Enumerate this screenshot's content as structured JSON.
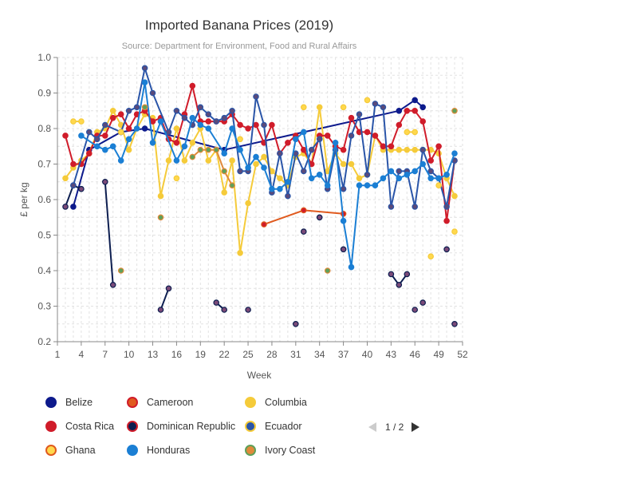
{
  "chart_data": {
    "type": "line",
    "title": "Imported Banana Prices (2019)",
    "subtitle": "Source: Department for Environment, Food and Rural Affairs",
    "xlabel": "Week",
    "ylabel": "£ per kg",
    "xlim": [
      1,
      52
    ],
    "ylim": [
      0.2,
      1.0
    ],
    "x_ticks": [
      1,
      4,
      7,
      10,
      13,
      16,
      19,
      22,
      25,
      28,
      31,
      34,
      37,
      40,
      43,
      46,
      49,
      52
    ],
    "y_ticks": [
      0.2,
      0.3,
      0.4,
      0.5,
      0.6,
      0.7,
      0.8,
      0.9,
      1.0
    ],
    "grid": true,
    "legend_position": "bottom-left",
    "series": [
      {
        "name": "Belize",
        "color": "#0d1a8c",
        "marker_fill": "#0d1a8c",
        "points": [
          [
            3,
            0.58
          ],
          [
            5,
            0.74
          ],
          [
            9,
            0.79
          ],
          [
            12,
            0.8
          ],
          [
            22,
            0.74
          ],
          [
            44,
            0.85
          ],
          [
            46,
            0.88
          ],
          [
            47,
            0.86
          ]
        ]
      },
      {
        "name": "Cameroon",
        "color": "#e05a1e",
        "marker_fill": "#d01c2a",
        "points": [
          [
            27,
            0.53
          ],
          [
            32,
            0.57
          ],
          [
            37,
            0.56
          ]
        ]
      },
      {
        "name": "Columbia",
        "color": "#f5cb3a",
        "marker_fill": "#f5cb3a",
        "points": [
          [
            2,
            0.66
          ],
          [
            3,
            0.69
          ],
          [
            4,
            0.71
          ],
          [
            5,
            0.73
          ],
          [
            6,
            0.79
          ],
          [
            7,
            0.8
          ],
          [
            8,
            0.85
          ],
          [
            9,
            0.81
          ],
          [
            10,
            0.74
          ],
          [
            11,
            0.8
          ],
          [
            12,
            0.84
          ],
          [
            13,
            0.83
          ],
          [
            14,
            0.61
          ],
          [
            15,
            0.71
          ],
          [
            16,
            0.8
          ],
          [
            17,
            0.71
          ],
          [
            18,
            0.76
          ],
          [
            19,
            0.8
          ],
          [
            20,
            0.71
          ],
          [
            21,
            0.74
          ],
          [
            22,
            0.62
          ],
          [
            23,
            0.71
          ],
          [
            24,
            0.45
          ],
          [
            25,
            0.59
          ],
          [
            26,
            0.7
          ],
          [
            27,
            0.72
          ],
          [
            28,
            0.68
          ],
          [
            29,
            0.66
          ],
          [
            30,
            0.64
          ],
          [
            31,
            0.72
          ],
          [
            32,
            0.73
          ],
          [
            33,
            0.7
          ],
          [
            34,
            0.86
          ],
          [
            35,
            0.68
          ],
          [
            36,
            0.73
          ],
          [
            37,
            0.7
          ],
          [
            38,
            0.7
          ],
          [
            39,
            0.66
          ],
          [
            40,
            0.67
          ],
          [
            41,
            0.78
          ],
          [
            42,
            0.74
          ],
          [
            43,
            0.74
          ],
          [
            44,
            0.74
          ],
          [
            45,
            0.74
          ],
          [
            46,
            0.74
          ],
          [
            47,
            0.74
          ],
          [
            48,
            0.74
          ],
          [
            49,
            0.73
          ],
          [
            50,
            0.66
          ],
          [
            51,
            0.61
          ]
        ]
      },
      {
        "name": "Costa Rica",
        "color": "#d01c2a",
        "marker_fill": "#d01c2a",
        "points": [
          [
            2,
            0.78
          ],
          [
            3,
            0.7
          ],
          [
            4,
            0.7
          ],
          [
            5,
            0.73
          ],
          [
            6,
            0.78
          ],
          [
            7,
            0.78
          ],
          [
            8,
            0.83
          ],
          [
            9,
            0.84
          ],
          [
            10,
            0.8
          ],
          [
            11,
            0.84
          ],
          [
            12,
            0.85
          ],
          [
            13,
            0.82
          ],
          [
            14,
            0.83
          ],
          [
            15,
            0.77
          ],
          [
            16,
            0.76
          ],
          [
            17,
            0.84
          ],
          [
            18,
            0.92
          ],
          [
            19,
            0.82
          ],
          [
            20,
            0.82
          ],
          [
            21,
            0.82
          ],
          [
            22,
            0.82
          ],
          [
            23,
            0.84
          ],
          [
            24,
            0.81
          ],
          [
            25,
            0.8
          ],
          [
            26,
            0.81
          ],
          [
            27,
            0.76
          ],
          [
            28,
            0.81
          ],
          [
            29,
            0.73
          ],
          [
            30,
            0.76
          ],
          [
            31,
            0.78
          ],
          [
            32,
            0.74
          ],
          [
            33,
            0.7
          ],
          [
            34,
            0.78
          ],
          [
            35,
            0.78
          ],
          [
            36,
            0.75
          ],
          [
            37,
            0.74
          ],
          [
            38,
            0.83
          ],
          [
            39,
            0.79
          ],
          [
            40,
            0.79
          ],
          [
            41,
            0.78
          ],
          [
            42,
            0.75
          ],
          [
            43,
            0.75
          ],
          [
            44,
            0.81
          ],
          [
            45,
            0.85
          ],
          [
            46,
            0.85
          ],
          [
            47,
            0.82
          ],
          [
            48,
            0.71
          ],
          [
            49,
            0.75
          ],
          [
            50,
            0.54
          ],
          [
            51,
            0.71
          ]
        ]
      },
      {
        "name": "Dominican Republic",
        "color": "#0d1e50",
        "marker_fill": "#7a4a78",
        "segments": [
          [
            [
              2,
              0.58
            ],
            [
              3,
              0.64
            ],
            [
              4,
              0.63
            ]
          ],
          [
            [
              7,
              0.65
            ],
            [
              8,
              0.36
            ]
          ],
          [
            [
              14,
              0.29
            ],
            [
              15,
              0.35
            ]
          ],
          [
            [
              21,
              0.31
            ],
            [
              22,
              0.29
            ]
          ],
          [
            [
              25,
              0.29
            ]
          ],
          [
            [
              31,
              0.25
            ]
          ],
          [
            [
              32,
              0.51
            ]
          ],
          [
            [
              34,
              0.55
            ]
          ],
          [
            [
              37,
              0.46
            ]
          ],
          [
            [
              43,
              0.39
            ],
            [
              44,
              0.36
            ],
            [
              45,
              0.39
            ]
          ],
          [
            [
              46,
              0.29
            ]
          ],
          [
            [
              47,
              0.31
            ]
          ],
          [
            [
              50,
              0.46
            ]
          ],
          [
            [
              51,
              0.25
            ]
          ]
        ]
      },
      {
        "name": "Ecuador",
        "color": "#2a55a8",
        "marker_fill": "#5a4a7a",
        "points": [
          [
            3,
            0.64
          ],
          [
            5,
            0.79
          ],
          [
            6,
            0.77
          ],
          [
            7,
            0.81
          ],
          [
            9,
            0.79
          ],
          [
            10,
            0.85
          ],
          [
            11,
            0.86
          ],
          [
            12,
            0.97
          ],
          [
            13,
            0.9
          ],
          [
            15,
            0.79
          ],
          [
            16,
            0.85
          ],
          [
            17,
            0.83
          ],
          [
            18,
            0.81
          ],
          [
            19,
            0.86
          ],
          [
            20,
            0.84
          ],
          [
            21,
            0.82
          ],
          [
            22,
            0.83
          ],
          [
            23,
            0.85
          ],
          [
            24,
            0.68
          ],
          [
            25,
            0.68
          ],
          [
            26,
            0.89
          ],
          [
            27,
            0.81
          ],
          [
            28,
            0.62
          ],
          [
            29,
            0.73
          ],
          [
            30,
            0.61
          ],
          [
            31,
            0.73
          ],
          [
            32,
            0.68
          ],
          [
            33,
            0.74
          ],
          [
            34,
            0.77
          ],
          [
            35,
            0.63
          ],
          [
            36,
            0.74
          ],
          [
            37,
            0.63
          ],
          [
            38,
            0.78
          ],
          [
            39,
            0.84
          ],
          [
            40,
            0.67
          ],
          [
            41,
            0.87
          ],
          [
            42,
            0.86
          ],
          [
            43,
            0.58
          ],
          [
            44,
            0.68
          ],
          [
            45,
            0.68
          ],
          [
            46,
            0.58
          ],
          [
            47,
            0.74
          ],
          [
            48,
            0.68
          ],
          [
            49,
            0.66
          ],
          [
            50,
            0.58
          ],
          [
            51,
            0.71
          ]
        ]
      },
      {
        "name": "Ghana",
        "color": "#f5cb3a",
        "marker_fill": "#ffd84d",
        "segments": [
          [
            [
              3,
              0.82
            ],
            [
              4,
              0.82
            ]
          ],
          [
            [
              9,
              0.79
            ]
          ],
          [
            [
              16,
              0.66
            ]
          ],
          [
            [
              24,
              0.77
            ]
          ],
          [
            [
              32,
              0.86
            ]
          ],
          [
            [
              37,
              0.86
            ]
          ],
          [
            [
              40,
              0.88
            ]
          ],
          [
            [
              45,
              0.79
            ],
            [
              46,
              0.79
            ]
          ],
          [
            [
              48,
              0.44
            ]
          ],
          [
            [
              49,
              0.64
            ]
          ],
          [
            [
              51,
              0.51
            ]
          ]
        ]
      },
      {
        "name": "Honduras",
        "color": "#1b7fd4",
        "marker_fill": "#1b7fd4",
        "points": [
          [
            4,
            0.78
          ],
          [
            6,
            0.75
          ],
          [
            7,
            0.74
          ],
          [
            8,
            0.75
          ],
          [
            9,
            0.71
          ],
          [
            10,
            0.77
          ],
          [
            11,
            0.8
          ],
          [
            12,
            0.93
          ],
          [
            13,
            0.76
          ],
          [
            14,
            0.82
          ],
          [
            16,
            0.71
          ],
          [
            17,
            0.75
          ],
          [
            18,
            0.83
          ],
          [
            19,
            0.81
          ],
          [
            20,
            0.8
          ],
          [
            22,
            0.73
          ],
          [
            23,
            0.8
          ],
          [
            24,
            0.74
          ],
          [
            25,
            0.69
          ],
          [
            26,
            0.72
          ],
          [
            27,
            0.69
          ],
          [
            28,
            0.63
          ],
          [
            29,
            0.63
          ],
          [
            30,
            0.65
          ],
          [
            31,
            0.77
          ],
          [
            32,
            0.79
          ],
          [
            33,
            0.66
          ],
          [
            34,
            0.67
          ],
          [
            35,
            0.64
          ],
          [
            36,
            0.76
          ],
          [
            37,
            0.54
          ],
          [
            38,
            0.41
          ],
          [
            39,
            0.64
          ],
          [
            40,
            0.64
          ],
          [
            41,
            0.64
          ],
          [
            42,
            0.66
          ],
          [
            43,
            0.68
          ],
          [
            44,
            0.66
          ],
          [
            45,
            0.67
          ],
          [
            46,
            0.68
          ],
          [
            47,
            0.7
          ],
          [
            48,
            0.66
          ],
          [
            49,
            0.66
          ],
          [
            50,
            0.67
          ],
          [
            51,
            0.73
          ]
        ]
      },
      {
        "name": "Ivory Coast",
        "color": "#e08a3a",
        "marker_fill": "#5fa05a",
        "segments": [
          [
            [
              9,
              0.4
            ]
          ],
          [
            [
              12,
              0.86
            ]
          ],
          [
            [
              14,
              0.55
            ]
          ],
          [
            [
              18,
              0.72
            ],
            [
              19,
              0.74
            ],
            [
              20,
              0.74
            ],
            [
              21,
              0.74
            ],
            [
              22,
              0.68
            ],
            [
              23,
              0.64
            ]
          ],
          [
            [
              35,
              0.4
            ]
          ],
          [
            [
              51,
              0.85
            ]
          ]
        ]
      }
    ]
  },
  "legend": {
    "items": [
      {
        "label": "Belize",
        "color": "#0d1a8c",
        "border": "#0d1a8c"
      },
      {
        "label": "Cameroon",
        "color": "#e05a1e",
        "border": "#d01c2a"
      },
      {
        "label": "Columbia",
        "color": "#f5cb3a",
        "border": "#f5cb3a"
      },
      {
        "label": "Costa Rica",
        "color": "#d01c2a",
        "border": "#d01c2a"
      },
      {
        "label": "Dominican Republic",
        "color": "#0d1e50",
        "border": "#d01c2a"
      },
      {
        "label": "Ecuador",
        "color": "#2a55a8",
        "border": "#f5cb3a"
      },
      {
        "label": "Ghana",
        "color": "#ffd84d",
        "border": "#e05a1e"
      },
      {
        "label": "Honduras",
        "color": "#1b7fd4",
        "border": "#1b7fd4"
      },
      {
        "label": "Ivory Coast",
        "color": "#e08a3a",
        "border": "#5fa05a"
      }
    ]
  },
  "pager": {
    "text": "1 / 2"
  }
}
